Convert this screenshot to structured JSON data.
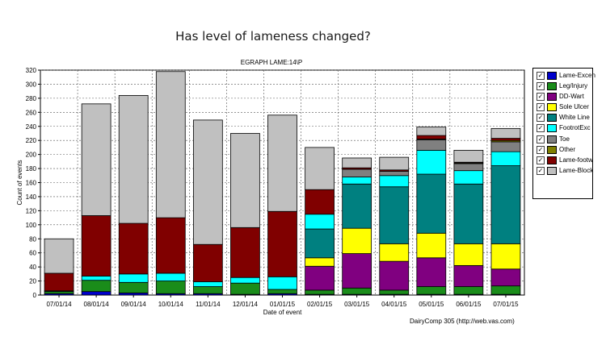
{
  "page_title": "Has level of lameness changed?",
  "footer": "DairyComp 305   (http://web.vas.com)",
  "chart_data": {
    "type": "bar",
    "stacked": true,
    "title": "EGRAPH LAME:14\\P",
    "xlabel": "Date of event",
    "ylabel": "Count of events",
    "ylim": [
      0,
      320
    ],
    "yticks": [
      0,
      20,
      40,
      60,
      80,
      100,
      120,
      140,
      160,
      180,
      200,
      220,
      240,
      260,
      280,
      300,
      320
    ],
    "grid": true,
    "legend_position": "right",
    "categories": [
      "07/01/14",
      "08/01/14",
      "09/01/14",
      "10/01/14",
      "11/01/14",
      "12/01/14",
      "01/01/15",
      "02/01/15",
      "03/01/15",
      "04/01/15",
      "05/01/15",
      "06/01/15",
      "07/01/15"
    ],
    "series": [
      {
        "name": "Lame-Excen",
        "color": "#0000cc",
        "values": [
          2,
          5,
          3,
          2,
          2,
          1,
          2,
          1,
          1,
          1,
          1,
          1,
          1
        ]
      },
      {
        "name": "Leg/Injury",
        "color": "#1a8c1a",
        "values": [
          3,
          16,
          15,
          18,
          10,
          16,
          6,
          6,
          9,
          6,
          11,
          11,
          12
        ]
      },
      {
        "name": "DD-Wart",
        "color": "#800080",
        "values": [
          0,
          0,
          0,
          0,
          0,
          0,
          0,
          34,
          49,
          41,
          41,
          30,
          24
        ]
      },
      {
        "name": "Sole Ulcer",
        "color": "#ffff00",
        "values": [
          0,
          0,
          0,
          0,
          0,
          0,
          0,
          12,
          36,
          25,
          35,
          31,
          36
        ]
      },
      {
        "name": "White Line",
        "color": "#008080",
        "values": [
          0,
          0,
          0,
          0,
          0,
          0,
          0,
          41,
          63,
          81,
          84,
          85,
          111
        ]
      },
      {
        "name": "FootrotExc",
        "color": "#00ffff",
        "values": [
          1,
          6,
          12,
          11,
          7,
          8,
          18,
          21,
          10,
          16,
          34,
          19,
          20
        ]
      },
      {
        "name": "Toe",
        "color": "#808080",
        "values": [
          0,
          0,
          0,
          0,
          0,
          0,
          0,
          0,
          11,
          6,
          15,
          10,
          14
        ]
      },
      {
        "name": "Other",
        "color": "#808000",
        "values": [
          0,
          0,
          0,
          0,
          0,
          0,
          0,
          0,
          0,
          0,
          1,
          1,
          2
        ]
      },
      {
        "name": "Lame-footw",
        "color": "#800000",
        "values": [
          25,
          86,
          72,
          79,
          53,
          71,
          93,
          35,
          2,
          2,
          5,
          1,
          3
        ]
      },
      {
        "name": "Lame-Block",
        "color": "#c0c0c0",
        "values": [
          49,
          159,
          182,
          208,
          177,
          134,
          137,
          60,
          14,
          18,
          12,
          17,
          14
        ]
      }
    ]
  }
}
